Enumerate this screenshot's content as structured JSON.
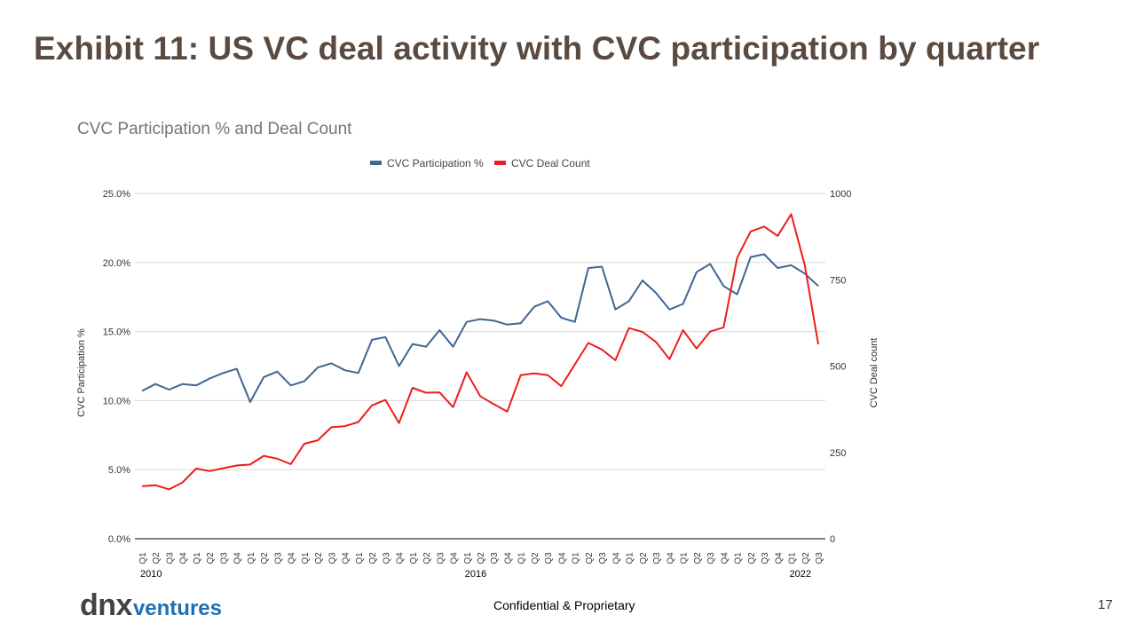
{
  "slide": {
    "title": "Exhibit 11: US VC deal activity with CVC participation by quarter",
    "footer": "Confidential & Proprietary",
    "page_number": "17",
    "logo_primary": "dnx",
    "logo_secondary": "ventures"
  },
  "colors": {
    "participation": "#3f6692",
    "deal_count": "#ee1c1c",
    "title": "#5b4a40"
  },
  "chart_data": {
    "type": "line",
    "title": "CVC Participation % and Deal Count",
    "ylabel": "CVC Participation %",
    "y2label": "CVC Deal count",
    "ylim": [
      0,
      25
    ],
    "y2lim": [
      0,
      1000
    ],
    "y_ticks": [
      "0.0%",
      "5.0%",
      "10.0%",
      "15.0%",
      "20.0%",
      "25.0%"
    ],
    "y_tick_values": [
      0,
      5,
      10,
      15,
      20,
      25
    ],
    "y2_ticks": [
      "0",
      "250",
      "500",
      "750",
      "1000"
    ],
    "y2_tick_values": [
      0,
      250,
      500,
      750,
      1000
    ],
    "grid": true,
    "legend_position": "top-center",
    "categories": [
      "Q1",
      "Q2",
      "Q3",
      "Q4",
      "Q1",
      "Q2",
      "Q3",
      "Q4",
      "Q1",
      "Q2",
      "Q3",
      "Q4",
      "Q1",
      "Q2",
      "Q3",
      "Q4",
      "Q1",
      "Q2",
      "Q3",
      "Q4",
      "Q1",
      "Q2",
      "Q3",
      "Q4",
      "Q1",
      "Q2",
      "Q3",
      "Q4",
      "Q1",
      "Q2",
      "Q3",
      "Q4",
      "Q1",
      "Q2",
      "Q3",
      "Q4",
      "Q1",
      "Q2",
      "Q3",
      "Q4",
      "Q1",
      "Q2",
      "Q3",
      "Q4",
      "Q1",
      "Q2",
      "Q3",
      "Q4",
      "Q1",
      "Q2",
      "Q3"
    ],
    "year_labels": [
      {
        "index": 0,
        "label": "2010"
      },
      {
        "index": 24,
        "label": "2016"
      },
      {
        "index": 48,
        "label": "2022"
      }
    ],
    "series": [
      {
        "name": "CVC Participation %",
        "axis": "left",
        "values": [
          10.7,
          11.2,
          10.8,
          11.2,
          11.1,
          11.6,
          12.0,
          12.3,
          9.9,
          11.7,
          12.1,
          11.1,
          11.4,
          12.4,
          12.7,
          12.2,
          12.0,
          14.4,
          14.6,
          12.5,
          14.1,
          13.9,
          15.1,
          13.9,
          15.7,
          15.9,
          15.8,
          15.5,
          15.6,
          16.8,
          17.2,
          16.0,
          15.7,
          19.6,
          19.7,
          16.6,
          17.2,
          18.7,
          17.8,
          16.6,
          17.0,
          19.3,
          19.9,
          18.3,
          17.7,
          20.4,
          20.6,
          19.6,
          19.8,
          19.2,
          18.3
        ]
      },
      {
        "name": "CVC Deal Count",
        "axis": "right",
        "values": [
          152,
          155,
          143,
          163,
          203,
          196,
          204,
          212,
          215,
          240,
          232,
          216,
          275,
          285,
          323,
          326,
          338,
          386,
          402,
          335,
          437,
          423,
          424,
          381,
          482,
          413,
          390,
          368,
          474,
          479,
          474,
          442,
          505,
          567,
          548,
          517,
          610,
          599,
          570,
          520,
          604,
          551,
          600,
          612,
          814,
          890,
          904,
          877,
          940,
          792,
          563
        ]
      }
    ]
  }
}
